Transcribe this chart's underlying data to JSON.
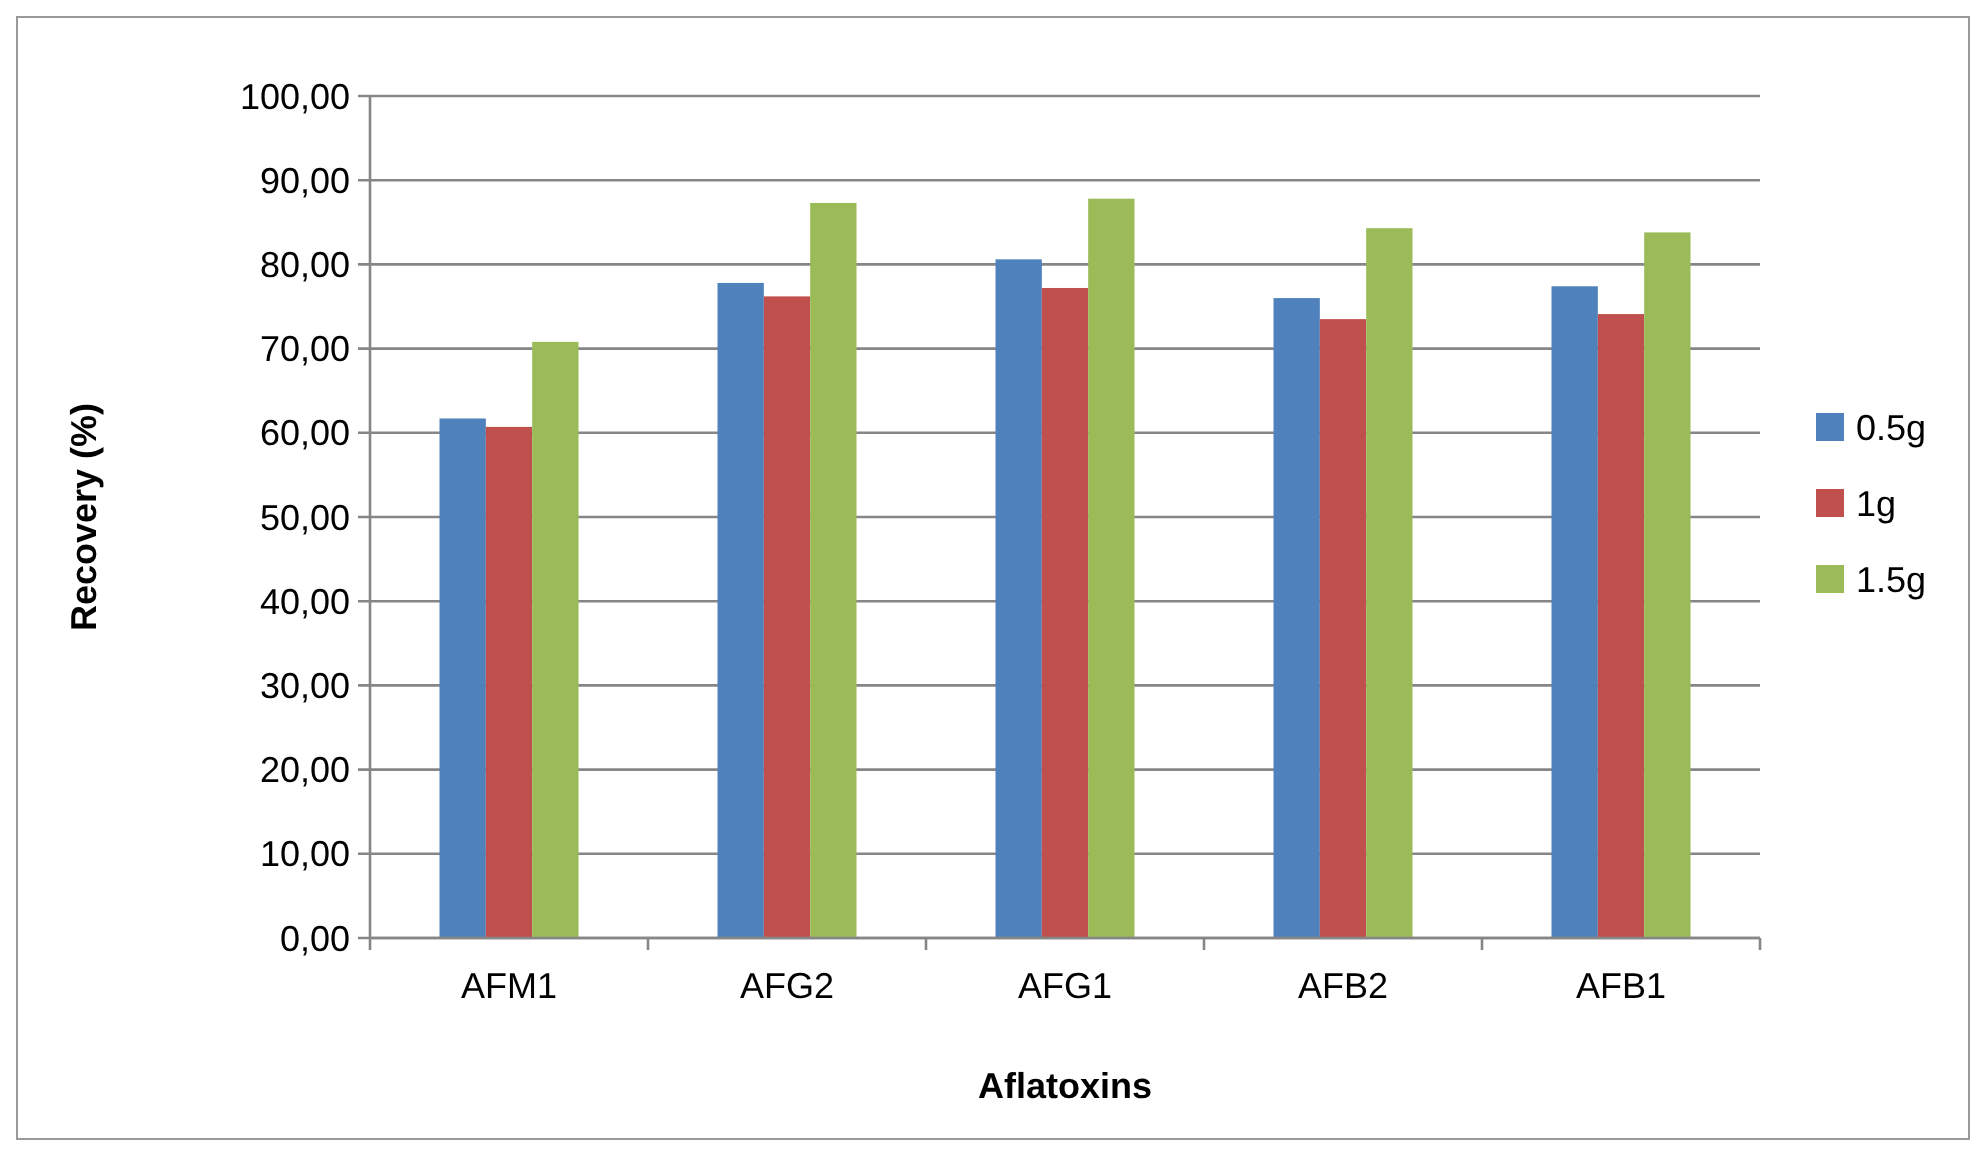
{
  "chart_data": {
    "type": "bar",
    "xlabel": "Aflatoxins",
    "ylabel": "Recovery (%)",
    "categories": [
      "AFM1",
      "AFG2",
      "AFG1",
      "AFB2",
      "AFB1"
    ],
    "series": [
      {
        "name": "0.5g",
        "color": "#4f81bd",
        "values": [
          61.7,
          77.8,
          80.6,
          76.0,
          77.4
        ]
      },
      {
        "name": "1g",
        "color": "#c0504d",
        "values": [
          60.7,
          76.2,
          77.2,
          73.5,
          74.1
        ]
      },
      {
        "name": "1.5g",
        "color": "#9bbb59",
        "values": [
          70.8,
          87.3,
          87.8,
          84.3,
          83.8
        ]
      }
    ],
    "ylim": [
      0,
      100
    ],
    "yticks": [
      {
        "value": 0,
        "label": "0,00"
      },
      {
        "value": 10,
        "label": "10,00"
      },
      {
        "value": 20,
        "label": "20,00"
      },
      {
        "value": 30,
        "label": "30,00"
      },
      {
        "value": 40,
        "label": "40,00"
      },
      {
        "value": 50,
        "label": "50,00"
      },
      {
        "value": 60,
        "label": "60,00"
      },
      {
        "value": 70,
        "label": "70,00"
      },
      {
        "value": 80,
        "label": "80,00"
      },
      {
        "value": 90,
        "label": "90,00"
      },
      {
        "value": 100,
        "label": "100,00"
      }
    ],
    "grid": "y",
    "legend": "right"
  }
}
